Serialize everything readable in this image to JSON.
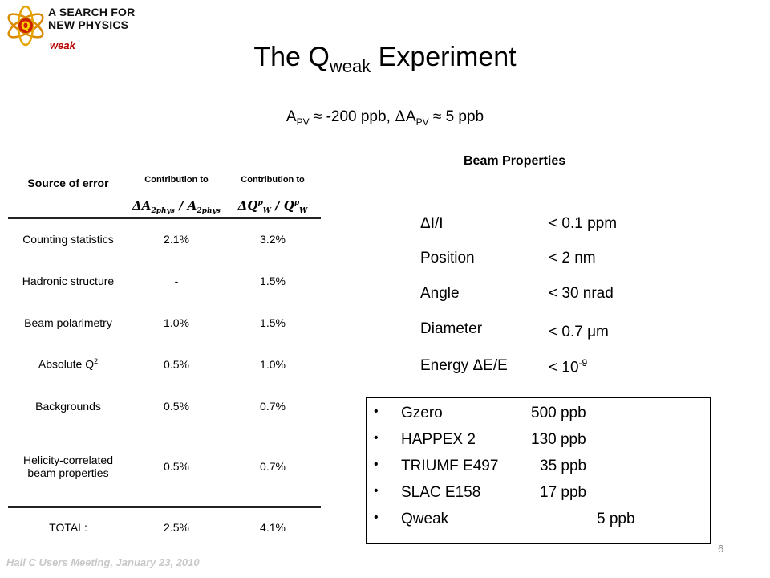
{
  "logo": {
    "line1": "A SEARCH FOR",
    "line2": "NEW PHYSICS",
    "sub": "weak"
  },
  "title": {
    "main": "The Q",
    "sub": "weak",
    "rest": " Experiment"
  },
  "subtitle": {
    "a": "A",
    "a_sub": "PV",
    "approx1": " ≈ -200 ppb, ",
    "delta": "Δ",
    "a2": "A",
    "a2_sub": "PV",
    "approx2": " ≈ 5 ppb"
  },
  "error_table": {
    "col1_header": "Source of error",
    "col2_header": "Contribution to",
    "col3_header": "Contribution to",
    "col2_formula": "ΔA₂ₚₕᵧₛ / A₂ₚₕᵧₛ",
    "col3_formula": "ΔQᵂᵖ / Qᵂᵖ",
    "rows": [
      {
        "source": "Counting statistics",
        "c1": "2.1%",
        "c2": "3.2%"
      },
      {
        "source": "Hadronic structure",
        "c1": "-",
        "c2": "1.5%"
      },
      {
        "source": "Beam polarimetry",
        "c1": "1.0%",
        "c2": "1.5%"
      },
      {
        "source": "Absolute Q",
        "source_sup": "2",
        "c1": "0.5%",
        "c2": "1.0%"
      },
      {
        "source": "Backgrounds",
        "c1": "0.5%",
        "c2": "0.7%"
      },
      {
        "source": "Helicity-correlated beam properties",
        "c1": "0.5%",
        "c2": "0.7%"
      }
    ],
    "total": {
      "source": "TOTAL:",
      "c1": "2.5%",
      "c2": "4.1%"
    }
  },
  "beam_properties": {
    "title": "Beam Properties",
    "items": [
      {
        "label": "ΔI/I",
        "value": "< 0.1 ppm"
      },
      {
        "label": "Position",
        "value": "< 2 nm"
      },
      {
        "label": "Angle",
        "value": "< 30 nrad"
      },
      {
        "label": "Diameter",
        "value": "< 0.7 μm"
      },
      {
        "label": "Energy ΔE/E",
        "value": "< 10",
        "value_sup": "-9"
      }
    ]
  },
  "experiments": [
    {
      "name": "Gzero",
      "value": "500 ppb"
    },
    {
      "name": "HAPPEX 2",
      "value": "130 ppb"
    },
    {
      "name": "TRIUMF E497",
      "value": "35 ppb"
    },
    {
      "name": "SLAC E158",
      "value": "17 ppb"
    },
    {
      "name": "Qweak",
      "value": "5 ppb"
    }
  ],
  "footer": "Hall C Users Meeting, January 23, 2010",
  "page_number": "6"
}
